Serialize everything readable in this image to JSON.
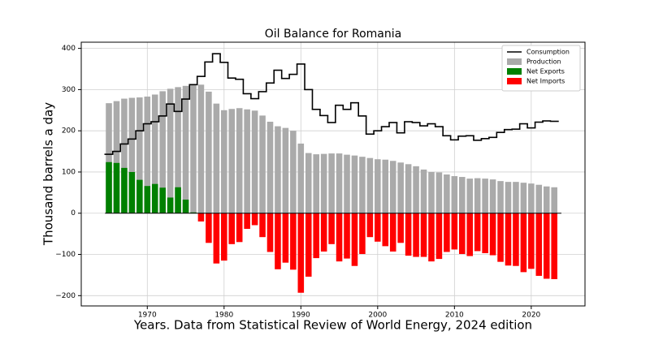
{
  "chart_data": {
    "type": "bar",
    "title": "Oil Balance for Romania",
    "xlabel": "Years. Data from Statistical Review of World Energy, 2024 edition",
    "ylabel": "Thousand barrels a day",
    "x": [
      1965,
      1966,
      1967,
      1968,
      1969,
      1970,
      1971,
      1972,
      1973,
      1974,
      1975,
      1976,
      1977,
      1978,
      1979,
      1980,
      1981,
      1982,
      1983,
      1984,
      1985,
      1986,
      1987,
      1988,
      1989,
      1990,
      1991,
      1992,
      1993,
      1994,
      1995,
      1996,
      1997,
      1998,
      1999,
      2000,
      2001,
      2002,
      2003,
      2004,
      2005,
      2006,
      2007,
      2008,
      2009,
      2010,
      2011,
      2012,
      2013,
      2014,
      2015,
      2016,
      2017,
      2018,
      2019,
      2020,
      2021,
      2022,
      2023
    ],
    "series": [
      {
        "name": "Consumption",
        "kind": "step",
        "color": "#000000",
        "values": [
          143,
          150,
          168,
          180,
          200,
          217,
          222,
          236,
          265,
          247,
          277,
          312,
          332,
          367,
          387,
          366,
          328,
          325,
          290,
          278,
          295,
          316,
          347,
          327,
          337,
          362,
          300,
          252,
          237,
          220,
          262,
          252,
          268,
          236,
          192,
          200,
          210,
          220,
          195,
          222,
          220,
          212,
          217,
          210,
          188,
          178,
          187,
          188,
          177,
          181,
          184,
          196,
          203,
          204,
          217,
          207,
          221,
          224,
          223
        ]
      },
      {
        "name": "Production",
        "kind": "bar",
        "color": "#aaaaaa",
        "values": [
          267,
          272,
          278,
          280,
          281,
          283,
          288,
          296,
          302,
          306,
          309,
          312,
          312,
          295,
          266,
          250,
          253,
          255,
          252,
          249,
          237,
          222,
          211,
          207,
          200,
          169,
          146,
          143,
          144,
          145,
          145,
          142,
          140,
          137,
          134,
          131,
          130,
          127,
          123,
          119,
          114,
          106,
          100,
          99,
          94,
          90,
          88,
          84,
          85,
          84,
          82,
          78,
          76,
          76,
          74,
          72,
          69,
          65,
          63
        ]
      },
      {
        "name": "Net Exports",
        "kind": "bar",
        "color": "#008000",
        "values": [
          124,
          122,
          110,
          100,
          81,
          66,
          71,
          62,
          38,
          63,
          33,
          2,
          null,
          null,
          null,
          null,
          null,
          null,
          null,
          null,
          null,
          null,
          null,
          null,
          null,
          null,
          null,
          null,
          null,
          null,
          null,
          null,
          null,
          null,
          null,
          null,
          null,
          null,
          null,
          null,
          null,
          null,
          null,
          null,
          null,
          null,
          null,
          null,
          null,
          null,
          null,
          null,
          null,
          null,
          null,
          null,
          null,
          null,
          null
        ]
      },
      {
        "name": "Net Imports",
        "kind": "bar",
        "color": "#ff0000",
        "values": [
          null,
          null,
          null,
          null,
          null,
          null,
          null,
          null,
          null,
          null,
          null,
          null,
          -20,
          -72,
          -122,
          -115,
          -75,
          -70,
          -38,
          -29,
          -58,
          -94,
          -136,
          -120,
          -137,
          -193,
          -154,
          -109,
          -93,
          -75,
          -117,
          -110,
          -128,
          -99,
          -58,
          -69,
          -80,
          -93,
          -72,
          -103,
          -106,
          -106,
          -117,
          -111,
          -94,
          -88,
          -99,
          -104,
          -92,
          -97,
          -102,
          -118,
          -127,
          -128,
          -143,
          -135,
          -152,
          -159,
          -160
        ]
      }
    ],
    "xlim": [
      1961.4,
      2027
    ],
    "xticks": [
      1970,
      1980,
      1990,
      2000,
      2010,
      2020
    ],
    "ylim": [
      -225,
      415
    ],
    "yticks": [
      {
        "value": -200,
        "label": "−200"
      },
      {
        "value": -100,
        "label": "−100"
      },
      0,
      100,
      200,
      300,
      400
    ],
    "grid": true,
    "legend": "upper right"
  }
}
